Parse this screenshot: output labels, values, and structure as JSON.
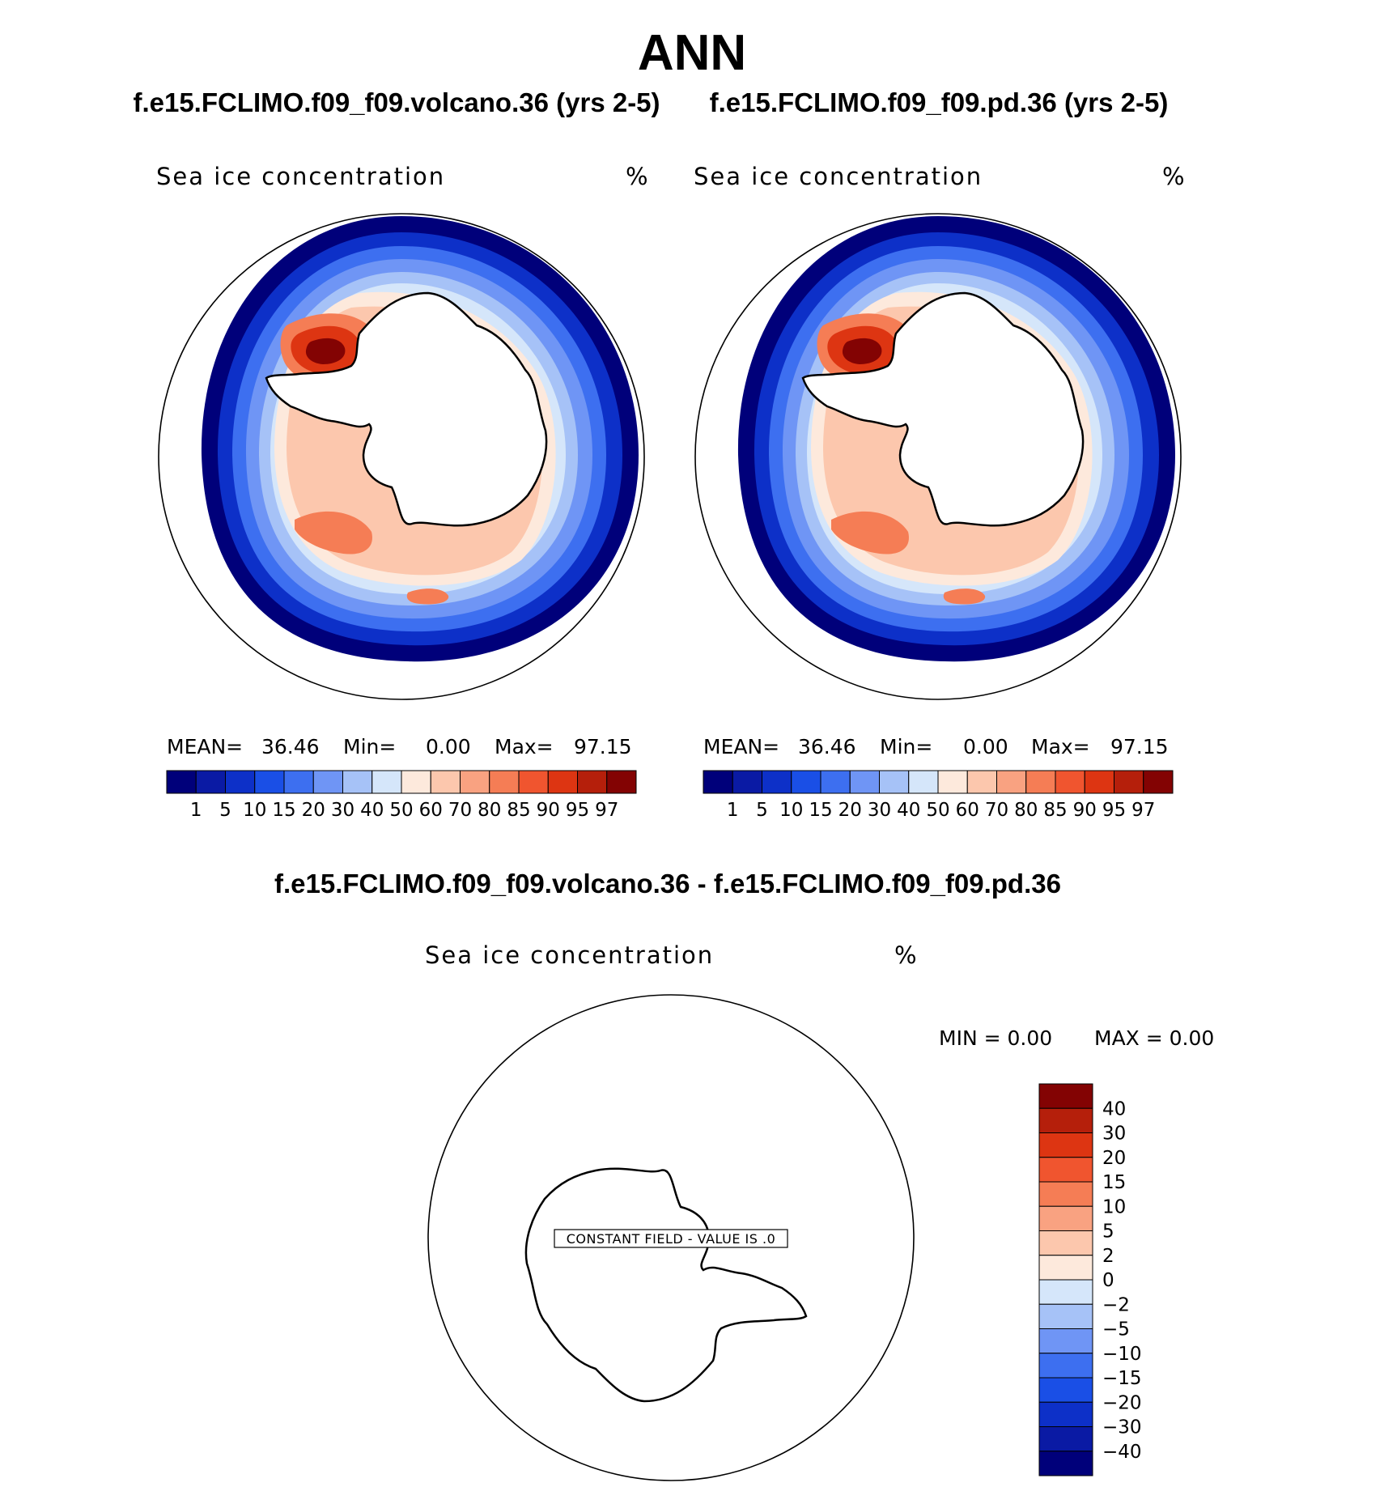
{
  "figure": {
    "title": "ANN"
  },
  "panels": [
    {
      "case_title": "f.e15.FCLIMO.f09_f09.volcano.36 (yrs 2-5)",
      "variable": "Sea ice concentration",
      "units": "%",
      "stats": {
        "mean_label": "MEAN=",
        "mean": "36.46",
        "min_label": "Min=",
        "min": "0.00",
        "max_label": "Max=",
        "max": "97.15"
      }
    },
    {
      "case_title": "f.e15.FCLIMO.f09_f09.pd.36 (yrs 2-5)",
      "variable": "Sea ice concentration",
      "units": "%",
      "stats": {
        "mean_label": "MEAN=",
        "mean": "36.46",
        "min_label": "Min=",
        "min": "0.00",
        "max_label": "Max=",
        "max": "97.15"
      }
    }
  ],
  "diff_panel": {
    "title": "f.e15.FCLIMO.f09_f09.volcano.36 - f.e15.FCLIMO.f09_f09.pd.36",
    "variable": "Sea ice concentration",
    "units": "%",
    "min_text": "MIN =     0.00",
    "max_text": "MAX =     0.00",
    "constant_field_label": "CONSTANT FIELD - VALUE IS .0"
  },
  "colorbar_main": {
    "levels": [
      "1",
      "5",
      "10",
      "15",
      "20",
      "30",
      "40",
      "50",
      "60",
      "70",
      "80",
      "85",
      "90",
      "95",
      "97"
    ],
    "colors": [
      "#00007a",
      "#0a1aa4",
      "#0d30c8",
      "#1a4fe6",
      "#3d6ff0",
      "#6f95f5",
      "#a6c2f7",
      "#d5e6fa",
      "#fde9dc",
      "#fcc7ad",
      "#f9a281",
      "#f57d55",
      "#f0552f",
      "#dd3512",
      "#b51f0b",
      "#830303"
    ]
  },
  "colorbar_diff": {
    "levels": [
      "40",
      "30",
      "20",
      "15",
      "10",
      "5",
      "2",
      "0",
      "−2",
      "−5",
      "−10",
      "−15",
      "−20",
      "−30",
      "−40"
    ],
    "colors": [
      "#830303",
      "#b51f0b",
      "#dd3512",
      "#f0552f",
      "#f57d55",
      "#f9a281",
      "#fcc7ad",
      "#fde9dc",
      "#d5e6fa",
      "#a6c2f7",
      "#6f95f5",
      "#3d6ff0",
      "#1a4fe6",
      "#0d30c8",
      "#0a1aa4",
      "#00007a"
    ]
  }
}
